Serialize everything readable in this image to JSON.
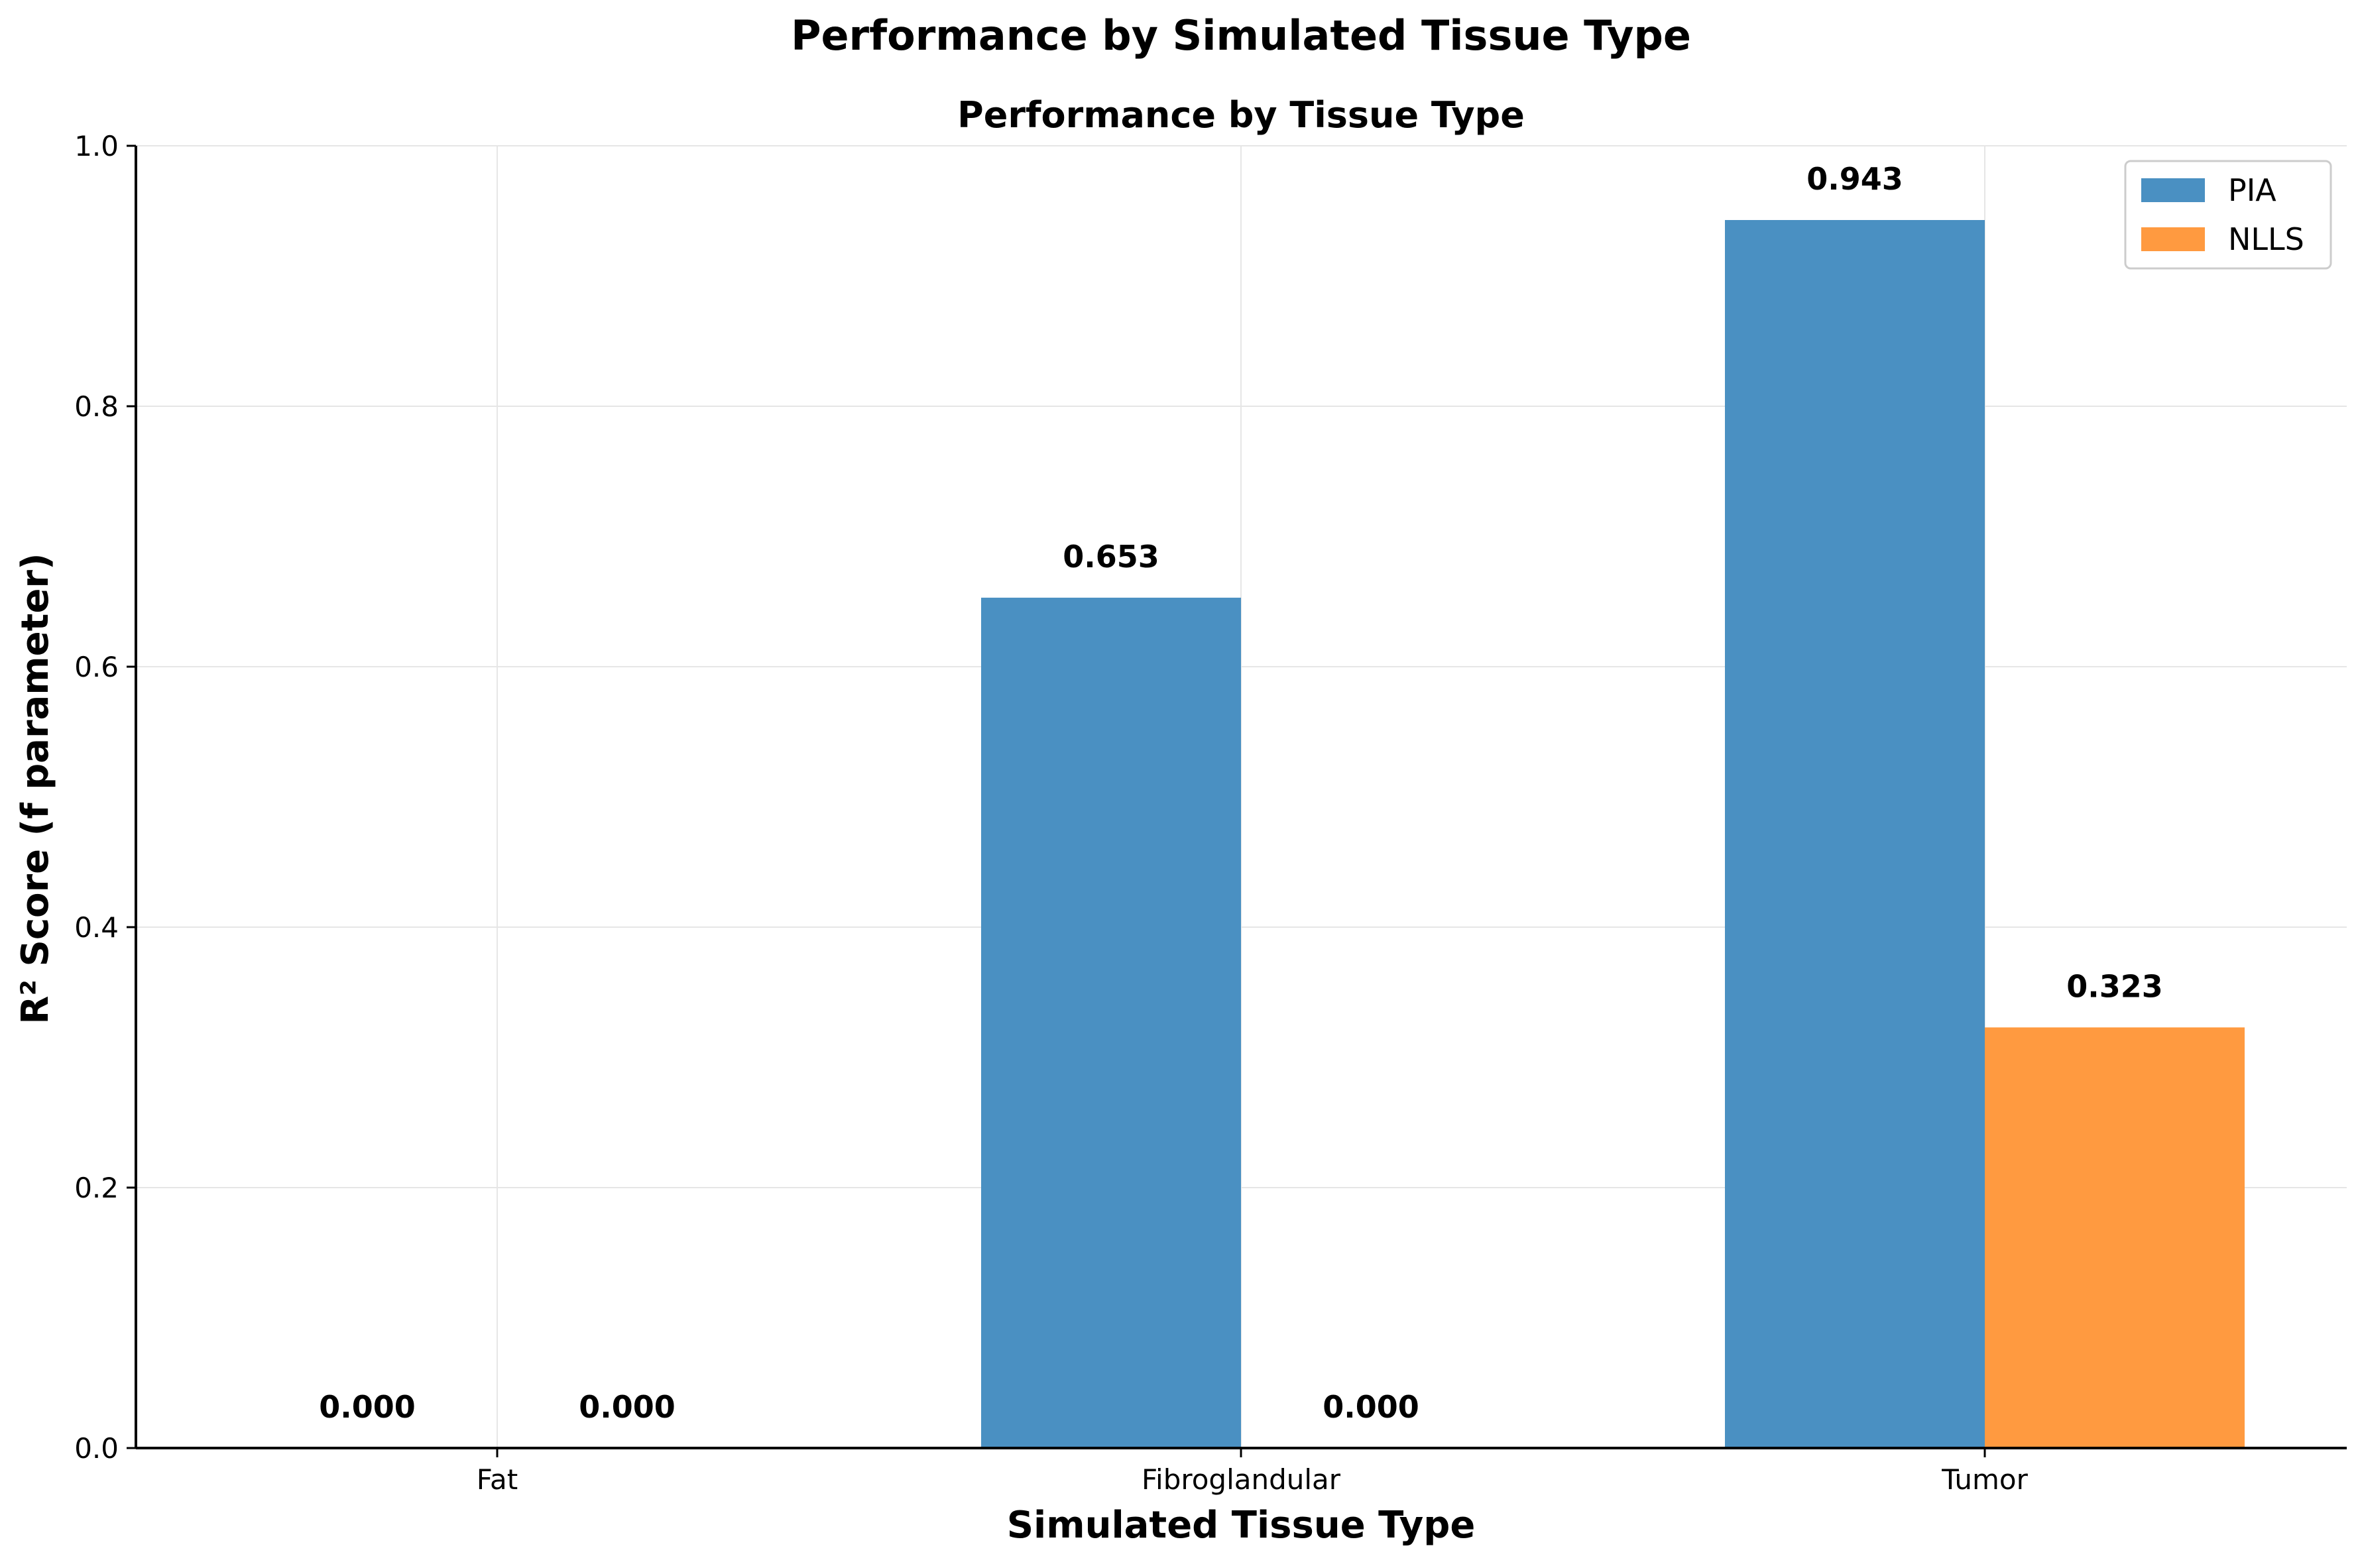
{
  "figure": {
    "suptitle": "Performance by Simulated Tissue Type"
  },
  "chart_data": {
    "type": "bar",
    "title": "Performance by Tissue Type",
    "xlabel": "Simulated Tissue Type",
    "ylabel": "R² Score (f parameter)",
    "categories": [
      "Fat",
      "Fibroglandular",
      "Tumor"
    ],
    "series": [
      {
        "name": "PIA",
        "color": "#4a90c2",
        "values": [
          0.0,
          0.653,
          0.943
        ],
        "labels": [
          "0.000",
          "0.653",
          "0.943"
        ]
      },
      {
        "name": "NLLS",
        "color": "#ff9a40",
        "values": [
          0.0,
          0.0,
          0.323
        ],
        "labels": [
          "0.000",
          "0.000",
          "0.323"
        ]
      }
    ],
    "ylim": [
      0,
      1.0
    ],
    "yticks": [
      0.0,
      0.2,
      0.4,
      0.6,
      0.8,
      1.0
    ],
    "ytick_labels": [
      "0.0",
      "0.2",
      "0.4",
      "0.6",
      "0.8",
      "1.0"
    ],
    "grid": true,
    "legend_position": "top-right"
  }
}
